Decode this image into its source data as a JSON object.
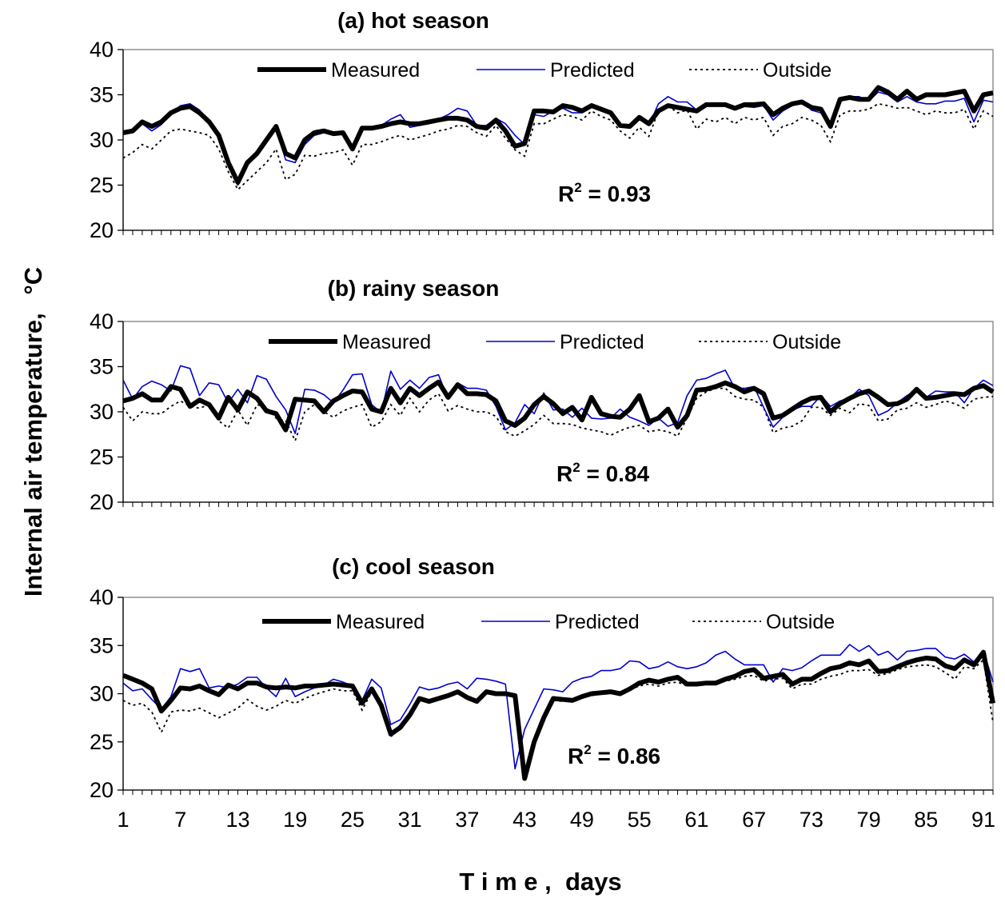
{
  "chart_data": {
    "type": "line",
    "ylabel": "Internal air temperature,",
    "ylabel_unit": "°C",
    "xlabel": "T i m e ,  days",
    "xticks": [
      1,
      7,
      13,
      19,
      25,
      31,
      37,
      43,
      49,
      55,
      61,
      67,
      73,
      79,
      85,
      91
    ],
    "xlim": [
      1,
      92
    ],
    "ylim": [
      20,
      40
    ],
    "yticks": [
      20,
      25,
      30,
      35,
      40
    ],
    "series_styles": {
      "Measured": {
        "color": "#000000",
        "style": "solid-thick"
      },
      "Predicted": {
        "color": "#0000cc",
        "style": "solid-thin"
      },
      "Outside": {
        "color": "#000000",
        "style": "dotted"
      }
    },
    "panels": [
      {
        "title": "(a) hot season",
        "r2_label": "R",
        "r2_sup": "2",
        "r2_value": " = 0.93",
        "legend": [
          "Measured",
          "Predicted",
          "Outside"
        ],
        "series": [
          {
            "name": "Measured",
            "values": [
              30.8,
              31.0,
              32.0,
              31.5,
              32.0,
              33.0,
              33.5,
              33.7,
              33.0,
              32.0,
              30.5,
              27.5,
              25.3,
              27.5,
              28.5,
              30.0,
              31.5,
              28.5,
              28.0,
              30.0,
              30.8,
              31.0,
              30.7,
              30.8,
              29.0,
              31.3,
              31.3,
              31.5,
              31.8,
              32.0,
              31.8,
              31.8,
              32.0,
              32.2,
              32.4,
              32.4,
              32.2,
              31.5,
              31.3,
              32.2,
              31.0,
              29.3,
              29.6,
              33.2,
              33.2,
              33.1,
              33.8,
              33.6,
              33.2,
              33.8,
              33.4,
              33.0,
              31.6,
              31.5,
              32.5,
              31.8,
              33.2,
              33.8,
              33.6,
              33.4,
              33.2,
              33.9,
              33.9,
              33.9,
              33.5,
              33.9,
              33.9,
              34.0,
              32.8,
              33.5,
              34.0,
              34.2,
              33.6,
              33.4,
              31.5,
              34.5,
              34.7,
              34.5,
              34.5,
              35.8,
              35.3,
              34.5,
              35.4,
              34.5,
              35.0,
              35.0,
              35.0,
              35.2,
              35.4,
              33.2,
              35.0,
              35.2
            ]
          },
          {
            "name": "Predicted",
            "values": [
              30.7,
              30.8,
              31.8,
              31.0,
              31.7,
              33.0,
              33.8,
              34.0,
              33.3,
              32.0,
              30.5,
              27.3,
              25.0,
              27.2,
              28.3,
              29.8,
              31.2,
              27.8,
              27.5,
              29.5,
              30.5,
              30.8,
              30.8,
              30.9,
              29.3,
              31.4,
              31.4,
              31.6,
              32.3,
              32.8,
              31.4,
              31.6,
              31.8,
              32.3,
              32.8,
              33.5,
              33.2,
              31.6,
              31.6,
              32.4,
              31.8,
              30.5,
              29.5,
              32.8,
              32.6,
              33.2,
              33.5,
              33.0,
              33.0,
              34.0,
              33.6,
              33.2,
              31.4,
              31.4,
              32.4,
              31.6,
              34.0,
              34.8,
              34.2,
              34.2,
              33.3,
              34.0,
              34.0,
              34.0,
              33.6,
              33.7,
              33.6,
              33.8,
              32.2,
              33.2,
              33.8,
              34.4,
              33.3,
              33.0,
              31.8,
              34.2,
              34.8,
              34.8,
              34.3,
              35.3,
              35.0,
              34.2,
              34.8,
              34.2,
              34.0,
              34.0,
              34.3,
              34.3,
              34.6,
              32.0,
              34.4,
              34.2
            ]
          },
          {
            "name": "Outside",
            "values": [
              28.0,
              28.6,
              29.5,
              29.0,
              30.0,
              31.0,
              31.2,
              31.0,
              30.8,
              30.5,
              29.0,
              26.5,
              24.5,
              25.5,
              26.5,
              27.5,
              29.0,
              25.6,
              26.2,
              28.3,
              28.2,
              28.5,
              28.6,
              28.9,
              27.2,
              29.5,
              29.5,
              29.8,
              30.2,
              30.5,
              30.0,
              30.3,
              30.6,
              31.0,
              31.2,
              31.6,
              31.5,
              30.8,
              30.4,
              31.6,
              30.2,
              28.9,
              28.2,
              31.8,
              31.8,
              32.3,
              32.8,
              32.6,
              32.2,
              33.2,
              32.6,
              32.2,
              31.0,
              30.2,
              31.4,
              30.4,
              33.2,
              33.8,
              33.0,
              33.3,
              31.2,
              32.3,
              32.0,
              32.5,
              31.8,
              32.5,
              32.2,
              32.5,
              30.5,
              31.5,
              31.8,
              32.5,
              32.2,
              31.6,
              29.8,
              32.8,
              33.2,
              33.2,
              33.4,
              34.0,
              33.8,
              33.5,
              33.6,
              33.2,
              32.8,
              33.2,
              33.0,
              33.0,
              33.4,
              31.2,
              33.2,
              32.6
            ]
          }
        ]
      },
      {
        "title": "(b) rainy season",
        "r2_label": "R",
        "r2_sup": "2",
        "r2_value": " = 0.84",
        "legend": [
          "Measured",
          "Predicted",
          "Outside"
        ],
        "series": [
          {
            "name": "Measured",
            "values": [
              31.2,
              31.5,
              32.0,
              31.3,
              31.3,
              32.8,
              32.5,
              30.6,
              31.3,
              30.8,
              29.3,
              31.6,
              30.2,
              32.2,
              31.5,
              30.1,
              29.8,
              28.0,
              31.4,
              31.3,
              31.2,
              30.0,
              31.2,
              31.8,
              32.3,
              32.2,
              30.3,
              30.0,
              32.6,
              31.0,
              32.6,
              31.8,
              32.6,
              33.3,
              31.6,
              33.0,
              32.0,
              32.0,
              31.9,
              31.2,
              29.0,
              28.5,
              29.3,
              30.8,
              31.7,
              30.9,
              29.8,
              30.5,
              29.1,
              31.6,
              29.8,
              29.5,
              29.4,
              30.3,
              31.8,
              28.9,
              29.3,
              30.3,
              28.3,
              29.6,
              32.4,
              32.5,
              32.8,
              33.2,
              32.8,
              32.2,
              32.6,
              32.0,
              29.3,
              29.6,
              30.3,
              31.0,
              31.5,
              31.6,
              30.0,
              30.9,
              31.5,
              32.0,
              32.3,
              31.6,
              30.8,
              30.9,
              31.4,
              32.5,
              31.5,
              31.6,
              31.8,
              32.0,
              31.9,
              32.6,
              32.9,
              32.2
            ]
          },
          {
            "name": "Predicted",
            "values": [
              33.5,
              31.4,
              32.8,
              33.4,
              33.0,
              32.3,
              35.1,
              34.8,
              31.8,
              33.2,
              33.0,
              31.0,
              32.5,
              31.0,
              34.0,
              33.6,
              31.7,
              30.2,
              27.6,
              32.5,
              32.4,
              31.9,
              31.0,
              32.4,
              34.1,
              34.2,
              30.8,
              29.9,
              34.5,
              32.5,
              33.5,
              32.6,
              33.8,
              34.1,
              31.4,
              33.2,
              32.6,
              32.6,
              32.4,
              30.6,
              28.0,
              28.8,
              30.8,
              29.8,
              32.1,
              30.2,
              30.3,
              29.4,
              30.4,
              29.3,
              29.2,
              29.3,
              30.3,
              29.4,
              29.0,
              28.5,
              29.3,
              28.4,
              28.8,
              31.8,
              33.5,
              33.7,
              34.2,
              34.6,
              32.6,
              32.6,
              32.8,
              30.5,
              28.3,
              29.4,
              30.2,
              30.6,
              30.6,
              31.8,
              30.6,
              31.2,
              31.5,
              32.5,
              31.8,
              29.6,
              30.1,
              31.0,
              31.8,
              32.4,
              31.6,
              32.3,
              32.2,
              32.2,
              31.0,
              32.6,
              33.5,
              32.9
            ]
          },
          {
            "name": "Outside",
            "values": [
              30.5,
              29.0,
              30.0,
              29.8,
              29.8,
              30.6,
              31.2,
              30.6,
              30.4,
              30.8,
              29.0,
              28.2,
              30.2,
              28.5,
              30.8,
              30.5,
              29.3,
              29.0,
              26.8,
              30.0,
              30.8,
              30.0,
              29.4,
              30.1,
              30.5,
              30.8,
              28.3,
              28.9,
              30.8,
              29.6,
              31.5,
              30.0,
              31.3,
              32.0,
              30.1,
              30.7,
              30.3,
              30.0,
              30.0,
              29.5,
              27.8,
              27.3,
              27.9,
              28.6,
              29.6,
              28.7,
              28.7,
              28.6,
              28.2,
              28.0,
              27.8,
              27.4,
              27.9,
              28.3,
              28.5,
              27.8,
              28.0,
              27.8,
              27.3,
              29.3,
              31.5,
              32.2,
              32.6,
              32.6,
              31.7,
              31.4,
              31.3,
              30.5,
              27.7,
              28.2,
              28.4,
              29.0,
              30.5,
              30.5,
              29.6,
              30.4,
              29.9,
              30.9,
              30.7,
              29.0,
              29.2,
              30.2,
              30.4,
              31.0,
              30.5,
              30.8,
              31.2,
              30.9,
              30.4,
              31.4,
              31.6,
              31.7
            ]
          }
        ]
      },
      {
        "title": "(c) cool season",
        "r2_label": "R",
        "r2_sup": "2",
        "r2_value": " = 0.86",
        "legend": [
          "Measured",
          "Predicted",
          "Outside"
        ],
        "series": [
          {
            "name": "Measured",
            "values": [
              31.9,
              31.5,
              31.1,
              30.5,
              28.2,
              29.3,
              30.6,
              30.5,
              30.8,
              30.3,
              29.9,
              30.9,
              30.5,
              31.1,
              31.1,
              30.7,
              30.6,
              30.7,
              30.6,
              30.8,
              30.8,
              30.9,
              31.0,
              30.9,
              30.8,
              29.0,
              30.5,
              28.8,
              25.8,
              26.5,
              27.8,
              29.5,
              29.2,
              29.5,
              29.8,
              30.2,
              29.6,
              29.2,
              30.2,
              30.0,
              30.0,
              29.8,
              21.2,
              25.0,
              27.5,
              29.5,
              29.4,
              29.3,
              29.7,
              30.0,
              30.1,
              30.2,
              30.0,
              30.5,
              31.1,
              31.4,
              31.2,
              31.5,
              31.7,
              31.0,
              31.0,
              31.1,
              31.1,
              31.5,
              31.8,
              32.3,
              32.5,
              31.6,
              31.8,
              32.0,
              31.0,
              31.5,
              31.5,
              32.1,
              32.6,
              32.8,
              33.2,
              33.0,
              33.4,
              32.3,
              32.4,
              32.8,
              33.2,
              33.5,
              33.7,
              33.6,
              32.9,
              32.6,
              33.5,
              33.0,
              34.3,
              29.0
            ]
          },
          {
            "name": "Predicted",
            "values": [
              31.1,
              30.3,
              30.5,
              29.4,
              28.4,
              29.7,
              32.6,
              32.3,
              32.6,
              30.6,
              30.8,
              30.6,
              31.0,
              31.7,
              31.7,
              30.6,
              29.7,
              31.6,
              29.7,
              30.2,
              30.6,
              30.9,
              31.5,
              31.2,
              30.8,
              29.3,
              31.5,
              30.6,
              26.8,
              27.3,
              28.9,
              30.7,
              30.4,
              30.6,
              31.0,
              31.2,
              30.5,
              31.6,
              31.5,
              31.3,
              31.0,
              22.2,
              26.3,
              28.4,
              30.5,
              30.4,
              30.2,
              31.2,
              31.6,
              31.8,
              32.4,
              32.4,
              32.6,
              33.4,
              33.3,
              32.6,
              32.8,
              33.3,
              32.8,
              32.6,
              32.8,
              33.2,
              34.0,
              34.4,
              33.6,
              33.0,
              33.0,
              33.0,
              31.2,
              32.6,
              32.4,
              32.7,
              33.4,
              34.0,
              34.0,
              34.0,
              35.1,
              34.4,
              35.0,
              34.0,
              34.4,
              33.5,
              34.4,
              34.5,
              34.7,
              34.7,
              33.8,
              33.6,
              34.1,
              33.3,
              34.5,
              31.2
            ]
          },
          {
            "name": "Outside",
            "values": [
              29.3,
              28.8,
              29.0,
              28.1,
              26.0,
              28.1,
              28.3,
              28.2,
              28.5,
              28.0,
              27.5,
              28.0,
              28.5,
              29.4,
              28.7,
              28.3,
              28.7,
              29.3,
              29.0,
              29.5,
              29.9,
              30.2,
              30.5,
              30.3,
              30.3,
              28.3,
              30.2,
              28.8,
              25.5,
              26.8,
              28.0,
              29.5,
              29.2,
              29.5,
              29.8,
              30.2,
              29.6,
              29.2,
              30.2,
              30.0,
              30.0,
              29.8,
              21.5,
              24.8,
              27.3,
              29.3,
              29.2,
              29.3,
              29.6,
              29.8,
              30.0,
              30.1,
              30.0,
              30.4,
              30.8,
              31.0,
              30.8,
              31.1,
              31.2,
              30.8,
              30.9,
              31.0,
              31.0,
              31.3,
              31.5,
              31.8,
              31.9,
              31.3,
              31.5,
              31.6,
              30.5,
              31.0,
              31.0,
              31.5,
              31.8,
              32.0,
              32.4,
              32.4,
              32.5,
              31.9,
              32.1,
              32.5,
              32.8,
              32.9,
              33.0,
              32.8,
              32.2,
              31.5,
              32.8,
              32.6,
              33.5,
              27.0
            ]
          }
        ]
      }
    ]
  }
}
